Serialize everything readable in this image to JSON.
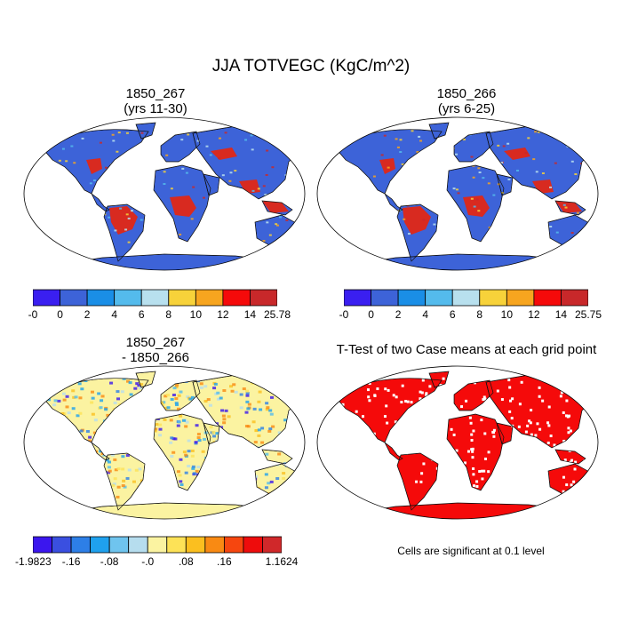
{
  "main_title": "JJA TOTVEGC (KgC/m^2)",
  "panels": {
    "tl": {
      "title1": "1850_267",
      "title2": "(yrs 11-30)"
    },
    "tr": {
      "title1": "1850_266",
      "title2": "(yrs 6-25)"
    },
    "bl": {
      "title1": "1850_267",
      "title2": "- 1850_266"
    },
    "br": {
      "title1": "T-Test of two Case means at each grid point",
      "note": "Cells are significant at 0.1 level"
    }
  },
  "colorbars": {
    "tl": {
      "colors": [
        "#3a1ff0",
        "#3d63d8",
        "#1a8ee6",
        "#54bbec",
        "#b8e0ee",
        "#f7d23a",
        "#f7a51f",
        "#f50a0a",
        "#c8282a"
      ],
      "labels": [
        "-0",
        "0",
        "2",
        "4",
        "6",
        "8",
        "10",
        "12",
        "14",
        "25.78"
      ]
    },
    "tr": {
      "colors": [
        "#3a1ff0",
        "#3d63d8",
        "#1a8ee6",
        "#54bbec",
        "#b8e0ee",
        "#f7d23a",
        "#f7a51f",
        "#f50a0a",
        "#c8282a"
      ],
      "labels": [
        "-0",
        "0",
        "2",
        "4",
        "6",
        "8",
        "10",
        "12",
        "14",
        "25.75"
      ]
    },
    "bl": {
      "colors": [
        "#3b16ee",
        "#3a4fe0",
        "#2d7fe7",
        "#1fa1ee",
        "#6fc4ee",
        "#b6ddee",
        "#fbf3a1",
        "#fde257",
        "#fbbf1f",
        "#f98a13",
        "#f6460f",
        "#ee0c0c",
        "#d0282a"
      ],
      "labels": [
        "-1.9823",
        "-.16",
        "-.08",
        "-.0",
        ".08",
        ".16",
        "1.1624"
      ]
    }
  },
  "map_colors": {
    "ocean": "#ffffff",
    "land_base_abs": "#3d63d8",
    "tropical_abs": "#d82a20",
    "diff_base": "#fbf3a1",
    "ttest": "#f50a0a"
  }
}
